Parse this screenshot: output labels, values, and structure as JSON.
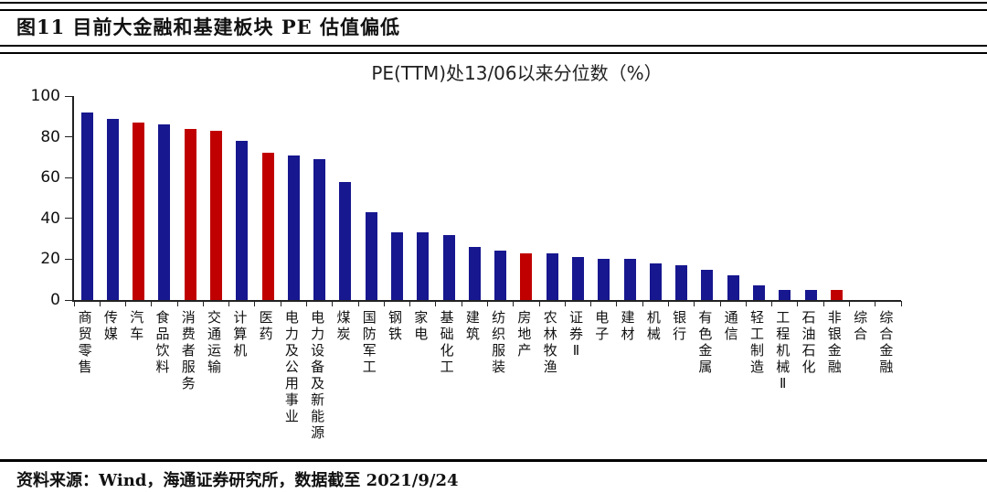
{
  "figure": {
    "title": "图11 目前大金融和基建板块 PE 估值偏低",
    "source": "资料来源：Wind，海通证券研究所，数据截至 2021/9/24"
  },
  "chart_data": {
    "type": "bar",
    "title": "PE(TTM)处13/06以来分位数（%）",
    "xlabel": "",
    "ylabel": "",
    "ylim": [
      0,
      100
    ],
    "yticks": [
      0,
      20,
      40,
      60,
      80,
      100
    ],
    "grid": false,
    "legend": null,
    "colors": {
      "default_bar": "#17178f",
      "highlight_bar": "#c00000",
      "axis": "#222222"
    },
    "categories": [
      "商贸零售",
      "传媒",
      "汽车",
      "食品饮料",
      "消费者服务",
      "交通运输",
      "计算机",
      "医药",
      "电力及公用事业",
      "电力设备及新能源",
      "煤炭",
      "国防军工",
      "钢铁",
      "家电",
      "基础化工",
      "建筑",
      "纺织服装",
      "房地产",
      "农林牧渔",
      "证券Ⅱ",
      "电子",
      "建材",
      "机械",
      "银行",
      "有色金属",
      "通信",
      "轻工制造",
      "工程机械Ⅱ",
      "石油石化",
      "非银金融",
      "综合",
      "综合金融"
    ],
    "values": [
      92,
      89,
      87,
      86,
      84,
      83,
      78,
      72,
      71,
      69,
      58,
      43,
      33,
      33,
      32,
      26,
      24,
      23,
      23,
      21,
      20,
      20,
      18,
      17,
      15,
      12,
      7,
      5,
      5,
      5,
      0,
      0
    ],
    "highlighted_categories": [
      "汽车",
      "消费者服务",
      "交通运输",
      "医药",
      "房地产",
      "非银金融"
    ]
  }
}
